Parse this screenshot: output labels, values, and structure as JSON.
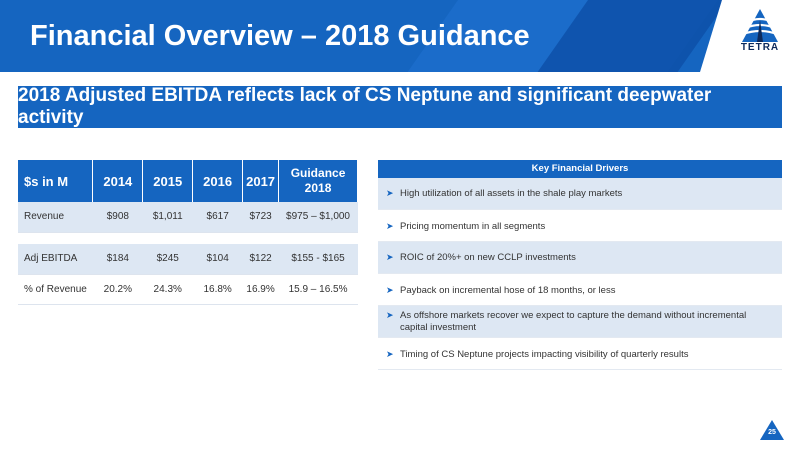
{
  "header": {
    "title": "Financial Overview – 2018 Guidance",
    "logo_text": "TETRA",
    "colors": {
      "primary": "#1565c0",
      "shade": "#dde7f3"
    }
  },
  "banner": {
    "text": "2018 Adjusted EBITDA reflects lack of CS Neptune and significant deepwater activity"
  },
  "financial_table": {
    "headers": [
      "$s in M",
      "2014",
      "2015",
      "2016",
      "2017",
      "Guidance 2018"
    ],
    "rows": [
      {
        "label": "Revenue",
        "cells": [
          "$908",
          "$1,011",
          "$617",
          "$723",
          "$975 – $1,000"
        ]
      },
      {
        "label": "Adj EBITDA",
        "cells": [
          "$184",
          "$245",
          "$104",
          "$122",
          "$155 - $165"
        ]
      },
      {
        "label": "% of Revenue",
        "cells": [
          "20.2%",
          "24.3%",
          "16.8%",
          "16.9%",
          "15.9 – 16.5%"
        ]
      }
    ]
  },
  "drivers": {
    "title": "Key Financial Drivers",
    "bullet_icon": "arrowhead-bullet-icon",
    "items": [
      "High utilization of all assets in the shale play markets",
      "Pricing momentum in all segments",
      "ROIC of 20%+ on new CCLP investments",
      "Payback on incremental hose of 18 months, or less",
      "As offshore markets recover we expect to capture the demand without incremental capital investment",
      "Timing of CS Neptune projects impacting visibility of quarterly results"
    ]
  },
  "footer": {
    "page_number": "25"
  }
}
